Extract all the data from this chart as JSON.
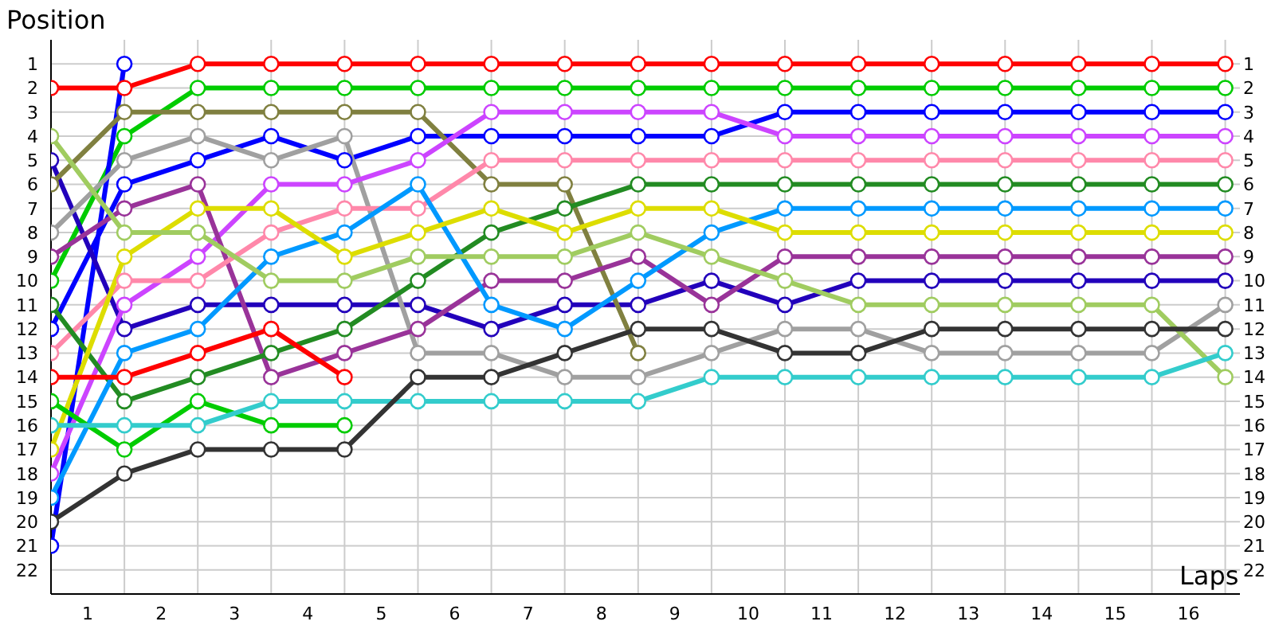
{
  "chart_data": {
    "type": "line",
    "xlabel": "Laps",
    "ylabel": "Position",
    "x": [
      0,
      1,
      2,
      3,
      4,
      5,
      6,
      7,
      8,
      9,
      10,
      11,
      12,
      13,
      14,
      15,
      16
    ],
    "xlim": [
      0,
      16.2
    ],
    "xticks": [
      {
        "value": 0,
        "label": null
      },
      {
        "value": 0.5,
        "label": "1"
      },
      {
        "value": 1,
        "label": null
      },
      {
        "value": 1.5,
        "label": "2"
      },
      {
        "value": 2,
        "label": null
      },
      {
        "value": 2.5,
        "label": "3"
      },
      {
        "value": 3,
        "label": null
      },
      {
        "value": 3.5,
        "label": "4"
      },
      {
        "value": 4,
        "label": null
      },
      {
        "value": 4.5,
        "label": "5"
      },
      {
        "value": 5,
        "label": null
      },
      {
        "value": 5.5,
        "label": "6"
      },
      {
        "value": 6,
        "label": null
      },
      {
        "value": 6.5,
        "label": "7"
      },
      {
        "value": 7,
        "label": null
      },
      {
        "value": 7.5,
        "label": "8"
      },
      {
        "value": 8,
        "label": null
      },
      {
        "value": 8.5,
        "label": "9"
      },
      {
        "value": 9,
        "label": null
      },
      {
        "value": 9.5,
        "label": "10"
      },
      {
        "value": 10,
        "label": null
      },
      {
        "value": 10.5,
        "label": "11"
      },
      {
        "value": 11,
        "label": null
      },
      {
        "value": 11.5,
        "label": "12"
      },
      {
        "value": 12,
        "label": null
      },
      {
        "value": 12.5,
        "label": "13"
      },
      {
        "value": 13,
        "label": null
      },
      {
        "value": 13.5,
        "label": "14"
      },
      {
        "value": 14,
        "label": null
      },
      {
        "value": 14.5,
        "label": "15"
      },
      {
        "value": 15,
        "label": null
      },
      {
        "value": 15.5,
        "label": "16"
      },
      {
        "value": 16,
        "label": null
      }
    ],
    "ylim": [
      23,
      0
    ],
    "yticks": [
      1,
      2,
      3,
      4,
      5,
      6,
      7,
      8,
      9,
      10,
      11,
      12,
      13,
      14,
      15,
      16,
      17,
      18,
      19,
      20,
      21,
      22
    ],
    "y2lim": [
      23,
      0
    ],
    "y2ticks": [
      1,
      2,
      3,
      4,
      5,
      6,
      7,
      8,
      9,
      10,
      11,
      12,
      13,
      14,
      15,
      16,
      17,
      18,
      19,
      20,
      21,
      22
    ],
    "grid": true,
    "marker": "circle",
    "line_style": "solid",
    "series": [
      {
        "color": "#ff0000",
        "values": [
          2,
          2,
          1,
          1,
          1,
          1,
          1,
          1,
          1,
          1,
          1,
          1,
          1,
          1,
          1,
          1,
          1
        ]
      },
      {
        "color": "#00cc00",
        "values": [
          10,
          4,
          2,
          2,
          2,
          2,
          2,
          2,
          2,
          2,
          2,
          2,
          2,
          2,
          2,
          2,
          2
        ]
      },
      {
        "color": "#0000ff",
        "values": [
          12,
          6,
          5,
          4,
          5,
          4,
          4,
          4,
          4,
          4,
          3,
          3,
          3,
          3,
          3,
          3,
          3
        ]
      },
      {
        "color": "#0000ff",
        "values": [
          21,
          1,
          null,
          null,
          null,
          null,
          null,
          null,
          null,
          null,
          null,
          null,
          null,
          null,
          null,
          null,
          null
        ]
      },
      {
        "color": "#2200bb",
        "values": [
          5,
          12,
          11,
          11,
          11,
          11,
          12,
          11,
          11,
          10,
          11,
          10,
          10,
          10,
          10,
          10,
          10
        ]
      },
      {
        "color": "#808040",
        "values": [
          6,
          3,
          3,
          3,
          3,
          3,
          6,
          6,
          13,
          null,
          null,
          null,
          null,
          null,
          null,
          null,
          null
        ]
      },
      {
        "color": "#a0a0a0",
        "values": [
          8,
          5,
          4,
          5,
          4,
          13,
          13,
          14,
          14,
          13,
          12,
          12,
          13,
          13,
          13,
          13,
          11
        ]
      },
      {
        "color": "#cc44ff",
        "values": [
          18,
          11,
          9,
          6,
          6,
          5,
          3,
          3,
          3,
          3,
          4,
          4,
          4,
          4,
          4,
          4,
          4
        ]
      },
      {
        "color": "#993399",
        "values": [
          9,
          7,
          6,
          14,
          13,
          12,
          10,
          10,
          9,
          11,
          9,
          9,
          9,
          9,
          9,
          9,
          9
        ]
      },
      {
        "color": "#ff88aa",
        "values": [
          13,
          10,
          10,
          8,
          7,
          7,
          5,
          5,
          5,
          5,
          5,
          5,
          5,
          5,
          5,
          5,
          5
        ]
      },
      {
        "color": "#228b22",
        "values": [
          11,
          15,
          14,
          13,
          12,
          10,
          8,
          7,
          6,
          6,
          6,
          6,
          6,
          6,
          6,
          6,
          6
        ]
      },
      {
        "color": "#0099ff",
        "values": [
          19,
          13,
          12,
          9,
          8,
          6,
          11,
          12,
          10,
          8,
          7,
          7,
          7,
          7,
          7,
          7,
          7
        ]
      },
      {
        "color": "#dddd00",
        "values": [
          17,
          9,
          7,
          7,
          9,
          8,
          7,
          8,
          7,
          7,
          8,
          8,
          8,
          8,
          8,
          8,
          8
        ]
      },
      {
        "color": "#a0cc60",
        "values": [
          4,
          8,
          8,
          10,
          10,
          9,
          9,
          9,
          8,
          9,
          10,
          11,
          11,
          11,
          11,
          11,
          14
        ]
      },
      {
        "color": "#ff0000",
        "values": [
          14,
          14,
          13,
          12,
          14,
          null,
          null,
          null,
          null,
          null,
          null,
          null,
          null,
          null,
          null,
          null,
          null
        ]
      },
      {
        "color": "#00cc00",
        "values": [
          15,
          17,
          15,
          16,
          16,
          null,
          null,
          null,
          null,
          null,
          null,
          null,
          null,
          null,
          null,
          null,
          null
        ]
      },
      {
        "color": "#33cccc",
        "values": [
          16,
          16,
          16,
          15,
          15,
          15,
          15,
          15,
          15,
          14,
          14,
          14,
          14,
          14,
          14,
          14,
          13
        ]
      },
      {
        "color": "#333333",
        "values": [
          20,
          18,
          17,
          17,
          17,
          14,
          14,
          13,
          12,
          12,
          13,
          13,
          12,
          12,
          12,
          12,
          12
        ]
      }
    ]
  }
}
